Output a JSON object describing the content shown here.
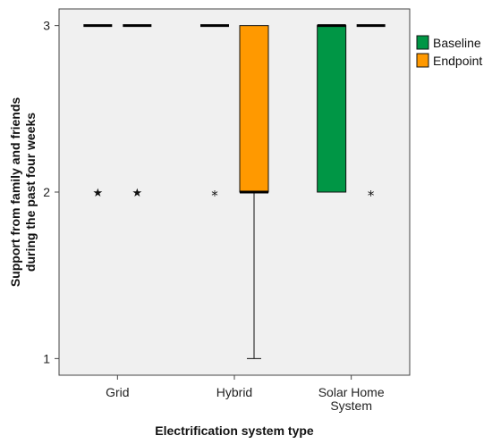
{
  "chart_data": {
    "type": "boxplot",
    "xlabel": "Electrification system type",
    "ylabel_lines": [
      "Support from family and friends",
      "during the past four weeks"
    ],
    "ylim": [
      0.9,
      3.1
    ],
    "yticks": [
      1,
      2,
      3
    ],
    "categories": [
      {
        "label_lines": [
          "Grid"
        ]
      },
      {
        "label_lines": [
          "Hybrid"
        ]
      },
      {
        "label_lines": [
          "Solar Home",
          "System"
        ]
      }
    ],
    "legend_position": "right",
    "series": [
      {
        "name": "Baseline",
        "color": "#009645",
        "boxes": [
          {
            "q1": 3,
            "median": 3,
            "q3": 3,
            "whisker_low": 3,
            "whisker_high": 3,
            "outliers": [
              2
            ],
            "outlier_marker": "★"
          },
          {
            "q1": 3,
            "median": 3,
            "q3": 3,
            "whisker_low": 3,
            "whisker_high": 3,
            "outliers": [
              2
            ],
            "outlier_marker": "*"
          },
          {
            "q1": 2,
            "median": 3,
            "q3": 3,
            "whisker_low": 2,
            "whisker_high": 3,
            "outliers": [],
            "outlier_marker": "*"
          }
        ]
      },
      {
        "name": "Endpoint",
        "color": "#FF9900",
        "boxes": [
          {
            "q1": 3,
            "median": 3,
            "q3": 3,
            "whisker_low": 3,
            "whisker_high": 3,
            "outliers": [
              2
            ],
            "outlier_marker": "★"
          },
          {
            "q1": 2,
            "median": 2,
            "q3": 3,
            "whisker_low": 1,
            "whisker_high": 3,
            "outliers": [],
            "outlier_marker": "*"
          },
          {
            "q1": 3,
            "median": 3,
            "q3": 3,
            "whisker_low": 3,
            "whisker_high": 3,
            "outliers": [
              2
            ],
            "outlier_marker": "*"
          }
        ]
      }
    ]
  }
}
